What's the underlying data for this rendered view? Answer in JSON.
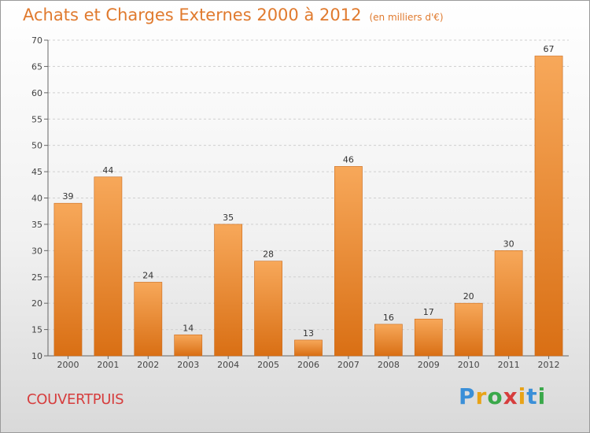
{
  "header": {
    "title": "Achats et Charges Externes 2000 à 2012",
    "unit": "(en milliers d'€)"
  },
  "footer": {
    "town": "COUVERTPUIS",
    "logo": [
      "P",
      "r",
      "o",
      "x",
      "i",
      "t",
      "i"
    ],
    "logo_colors": [
      "#3a8fd8",
      "#e8a317",
      "#3aa84a",
      "#d63d3d",
      "#e8a317",
      "#3a8fd8",
      "#3aa84a"
    ]
  },
  "chart_data": {
    "type": "bar",
    "title": "Achats et Charges Externes 2000 à 2012",
    "subtitle": "(en milliers d'€)",
    "categories": [
      "2000",
      "2001",
      "2002",
      "2003",
      "2004",
      "2005",
      "2006",
      "2007",
      "2008",
      "2009",
      "2010",
      "2011",
      "2012"
    ],
    "values": [
      39,
      44,
      24,
      14,
      35,
      28,
      13,
      46,
      16,
      17,
      20,
      30,
      67
    ],
    "ylim": [
      10,
      70
    ],
    "yticks": [
      10,
      15,
      20,
      25,
      30,
      35,
      40,
      45,
      50,
      55,
      60,
      65,
      70
    ],
    "grid": true,
    "bar_color_top": "#f7a85a",
    "bar_color_bottom": "#d96f14"
  }
}
